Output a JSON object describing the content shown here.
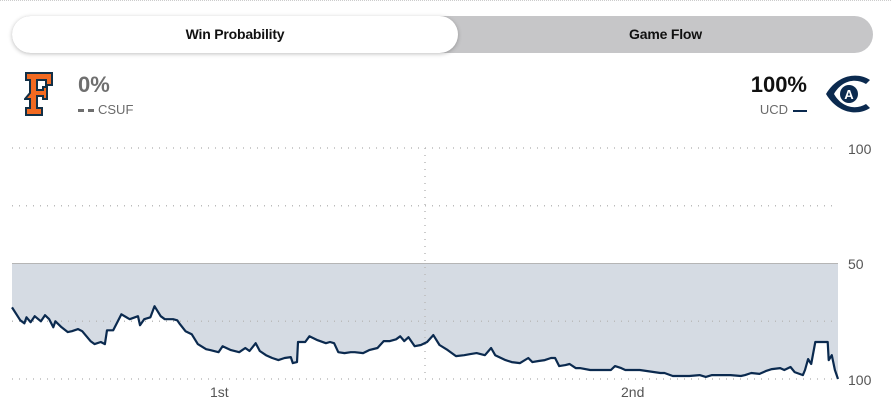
{
  "tabs": [
    {
      "label": "Win Probability",
      "active": true
    },
    {
      "label": "Game Flow",
      "active": false
    }
  ],
  "away": {
    "abbr": "CSUF",
    "win_pct": "0%",
    "color": "#f26a21",
    "logo": "F",
    "line_style": "dashed"
  },
  "home": {
    "abbr": "UCD",
    "win_pct": "100%",
    "color": "#0b2a4f",
    "logo": "A",
    "line_style": "solid"
  },
  "chart_data": {
    "type": "area",
    "y_tick_labels": [
      "100",
      "50",
      "100"
    ],
    "x_tick_labels": [
      "1st",
      "2nd"
    ],
    "ylim": [
      0,
      100
    ],
    "xlim": [
      0,
      40
    ],
    "grid": true,
    "fill_color": "#d5dbe3",
    "line_color": "#0b2a4f",
    "series": [
      {
        "points": [
          [
            0,
            69.0
          ],
          [
            0.4,
            74.6
          ],
          [
            0.6,
            75.9
          ],
          [
            0.7,
            73.3
          ],
          [
            0.9,
            75.4
          ],
          [
            1.1,
            72.8
          ],
          [
            1.4,
            75.0
          ],
          [
            1.6,
            72.4
          ],
          [
            1.8,
            74.1
          ],
          [
            2.0,
            77.6
          ],
          [
            2.1,
            75.0
          ],
          [
            2.4,
            77.6
          ],
          [
            2.7,
            79.7
          ],
          [
            2.9,
            79.3
          ],
          [
            3.2,
            78.4
          ],
          [
            3.4,
            79.3
          ],
          [
            3.8,
            83.6
          ],
          [
            4.0,
            84.9
          ],
          [
            4.3,
            84.0
          ],
          [
            4.5,
            84.9
          ],
          [
            4.6,
            78.9
          ],
          [
            4.9,
            78.9
          ],
          [
            5.1,
            75.4
          ],
          [
            5.3,
            72.0
          ],
          [
            5.7,
            74.1
          ],
          [
            6.1,
            72.8
          ],
          [
            6.2,
            76.7
          ],
          [
            6.4,
            74.1
          ],
          [
            6.7,
            73.3
          ],
          [
            6.9,
            68.5
          ],
          [
            7.2,
            72.8
          ],
          [
            7.4,
            74.1
          ],
          [
            7.8,
            74.1
          ],
          [
            8.0,
            74.6
          ],
          [
            8.1,
            75.9
          ],
          [
            8.4,
            79.3
          ],
          [
            8.7,
            80.6
          ],
          [
            9.0,
            84.9
          ],
          [
            9.4,
            87.1
          ],
          [
            9.6,
            87.5
          ],
          [
            10.0,
            88.4
          ],
          [
            10.2,
            85.8
          ],
          [
            10.6,
            87.5
          ],
          [
            11.0,
            88.4
          ],
          [
            11.3,
            86.6
          ],
          [
            11.5,
            87.9
          ],
          [
            11.8,
            84.5
          ],
          [
            12.0,
            87.9
          ],
          [
            12.3,
            89.7
          ],
          [
            12.6,
            90.9
          ],
          [
            12.9,
            91.8
          ],
          [
            13.2,
            90.9
          ],
          [
            13.5,
            90.5
          ],
          [
            13.6,
            93.1
          ],
          [
            13.8,
            92.7
          ],
          [
            13.85,
            84.0
          ],
          [
            14.2,
            84.0
          ],
          [
            14.4,
            81.5
          ],
          [
            14.8,
            83.2
          ],
          [
            15.2,
            84.5
          ],
          [
            15.4,
            84.0
          ],
          [
            15.6,
            84.5
          ],
          [
            15.8,
            88.4
          ],
          [
            16.1,
            88.8
          ],
          [
            16.4,
            88.4
          ],
          [
            16.6,
            88.4
          ],
          [
            17.0,
            88.8
          ],
          [
            17.3,
            87.5
          ],
          [
            17.7,
            86.6
          ],
          [
            18.0,
            83.6
          ],
          [
            18.3,
            83.6
          ],
          [
            18.6,
            82.8
          ],
          [
            18.8,
            81.5
          ],
          [
            19.0,
            83.6
          ],
          [
            19.2,
            81.9
          ],
          [
            19.5,
            85.8
          ],
          [
            19.8,
            85.3
          ],
          [
            20.1,
            84.0
          ],
          [
            20.4,
            81.0
          ],
          [
            20.7,
            85.3
          ],
          [
            21.1,
            87.5
          ],
          [
            21.5,
            90.1
          ],
          [
            21.9,
            89.7
          ],
          [
            22.2,
            89.2
          ],
          [
            22.5,
            88.8
          ],
          [
            22.9,
            89.7
          ],
          [
            23.2,
            86.6
          ],
          [
            23.4,
            89.7
          ],
          [
            23.9,
            91.8
          ],
          [
            24.2,
            92.7
          ],
          [
            24.6,
            93.1
          ],
          [
            25.0,
            90.9
          ],
          [
            25.2,
            92.7
          ],
          [
            25.5,
            92.2
          ],
          [
            25.8,
            91.8
          ],
          [
            26.1,
            90.9
          ],
          [
            26.3,
            90.9
          ],
          [
            26.5,
            94.4
          ],
          [
            26.8,
            94.0
          ],
          [
            27.0,
            93.5
          ],
          [
            27.3,
            95.3
          ],
          [
            27.5,
            95.3
          ],
          [
            28.0,
            96.1
          ],
          [
            28.5,
            96.1
          ],
          [
            29.0,
            96.1
          ],
          [
            29.2,
            94.4
          ],
          [
            29.5,
            95.3
          ],
          [
            29.7,
            96.1
          ],
          [
            30.4,
            96.1
          ],
          [
            31.4,
            97.4
          ],
          [
            31.6,
            97.4
          ],
          [
            32.0,
            98.7
          ],
          [
            32.4,
            98.7
          ],
          [
            32.8,
            98.7
          ],
          [
            33.3,
            98.3
          ],
          [
            33.6,
            99.1
          ],
          [
            33.9,
            98.3
          ],
          [
            34.3,
            98.3
          ],
          [
            34.8,
            98.3
          ],
          [
            35.3,
            98.7
          ],
          [
            35.5,
            98.3
          ],
          [
            35.8,
            97.4
          ],
          [
            36.2,
            97.8
          ],
          [
            36.5,
            96.6
          ],
          [
            36.8,
            95.7
          ],
          [
            37.2,
            95.3
          ],
          [
            37.4,
            96.1
          ],
          [
            37.7,
            94.8
          ],
          [
            37.9,
            97.0
          ],
          [
            38.3,
            98.3
          ],
          [
            38.4,
            96.1
          ],
          [
            38.55,
            91.4
          ],
          [
            38.7,
            93.5
          ],
          [
            38.9,
            84.0
          ],
          [
            39.5,
            84.0
          ],
          [
            39.55,
            91.8
          ],
          [
            39.7,
            89.7
          ],
          [
            39.85,
            96.1
          ],
          [
            40,
            100
          ]
        ]
      }
    ]
  }
}
